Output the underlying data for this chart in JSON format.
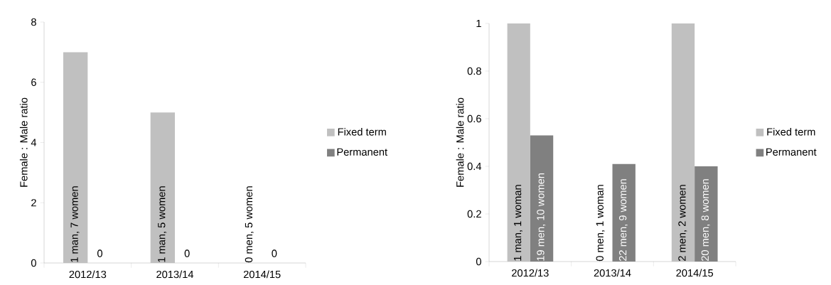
{
  "chart_data": [
    {
      "type": "bar",
      "ylabel": "Female : Male ratio",
      "categories": [
        "2012/13",
        "2013/14",
        "2014/15"
      ],
      "ylim": [
        0,
        8
      ],
      "yticks": [
        0,
        2,
        4,
        6,
        8
      ],
      "legend": "right",
      "series": [
        {
          "name": "Fixed term",
          "color": "#c0c0c0",
          "values": [
            7,
            5,
            0
          ]
        },
        {
          "name": "Permanent",
          "color": "#808080",
          "values": [
            0,
            0,
            0
          ]
        }
      ],
      "annotations": [
        {
          "text": "1 man, 7 women",
          "x": "2012/13",
          "y": 0
        },
        {
          "text": "0",
          "x": "2012/13",
          "y": 0
        },
        {
          "text": "1 man, 5 women",
          "x": "2013/14",
          "y": 0
        },
        {
          "text": "0",
          "x": "2013/14",
          "y": 0
        },
        {
          "text": "0 men, 5 women",
          "x": "2014/15",
          "y": 0
        },
        {
          "text": "0",
          "x": "2014/15",
          "y": 0
        }
      ]
    },
    {
      "type": "bar",
      "ylabel": "Female : Male ratio",
      "categories": [
        "2012/13",
        "2013/14",
        "2014/15"
      ],
      "ylim": [
        0,
        1
      ],
      "yticks": [
        0,
        0.2,
        0.4,
        0.6,
        0.8,
        1
      ],
      "legend": "right",
      "series": [
        {
          "name": "Fixed term",
          "color": "#c0c0c0",
          "values": [
            1,
            0,
            1
          ]
        },
        {
          "name": "Permanent",
          "color": "#808080",
          "values": [
            0.53,
            0.41,
            0.4
          ]
        }
      ],
      "annotations": [
        {
          "text": "1 man, 1 woman",
          "x": "2012/13",
          "y": 0
        },
        {
          "text": "19 men, 10 women",
          "x": "2012/13",
          "y": 0
        },
        {
          "text": "0 men, 1 woman",
          "x": "2013/14",
          "y": 0
        },
        {
          "text": "22 men, 9 women",
          "x": "2013/14",
          "y": 0
        },
        {
          "text": "2 men, 2 women",
          "x": "2014/15",
          "y": 0
        },
        {
          "text": "20 men, 8 women",
          "x": "2014/15",
          "y": 0
        }
      ]
    }
  ]
}
